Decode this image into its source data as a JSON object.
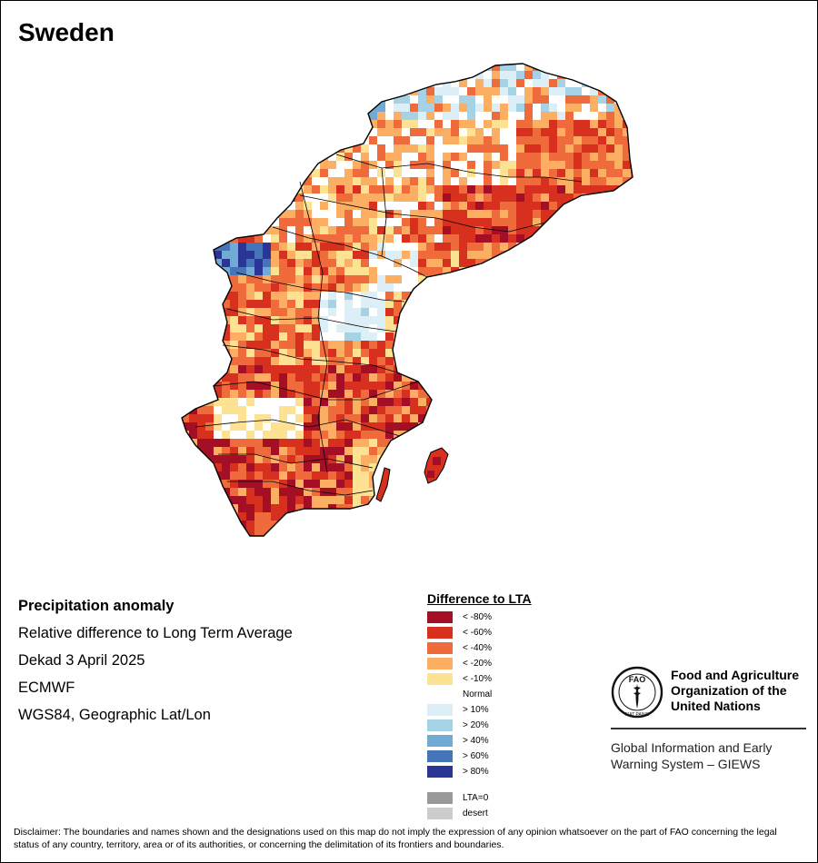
{
  "map": {
    "country": "Sweden",
    "info": {
      "title": "Precipitation anomaly",
      "subtitle": "Relative difference to Long Term Average",
      "period": "Dekad 3 April 2025",
      "source": "ECMWF",
      "projection": "WGS84, Geographic Lat/Lon"
    }
  },
  "legend": {
    "title": "Difference to LTA",
    "classes": [
      {
        "label": "< -80%",
        "color": "#a50f26"
      },
      {
        "label": "< -60%",
        "color": "#d7301f"
      },
      {
        "label": "< -40%",
        "color": "#f06b3c"
      },
      {
        "label": "< -20%",
        "color": "#fcae63"
      },
      {
        "label": "< -10%",
        "color": "#fde293"
      },
      {
        "label": "Normal",
        "color": "#ffffff"
      },
      {
        "label": "> 10%",
        "color": "#ddeff6"
      },
      {
        "label": "> 20%",
        "color": "#a6d2e6"
      },
      {
        "label": "> 40%",
        "color": "#72aad6"
      },
      {
        "label": "> 60%",
        "color": "#4575b8"
      },
      {
        "label": "> 80%",
        "color": "#2b3595"
      }
    ],
    "extra": [
      {
        "label": "LTA=0",
        "color": "#999999"
      },
      {
        "label": "desert",
        "color": "#cccccc"
      }
    ]
  },
  "fao": {
    "logo_text": "FAO",
    "logo_motto": "FIAT PANIS",
    "name_lines": [
      "Food and Agriculture",
      "Organization of the",
      "United Nations"
    ],
    "giews_lines": [
      "Global Information and Early",
      "Warning System – GIEWS"
    ]
  },
  "disclaimer": "Disclaimer: The boundaries and names shown and the designations used on this map do not imply the expression of any opinion whatsoever on the part of FAO concerning the legal status of any country, territory, area or of its authorities, or concerning the delimitation of its frontiers and boundaries."
}
